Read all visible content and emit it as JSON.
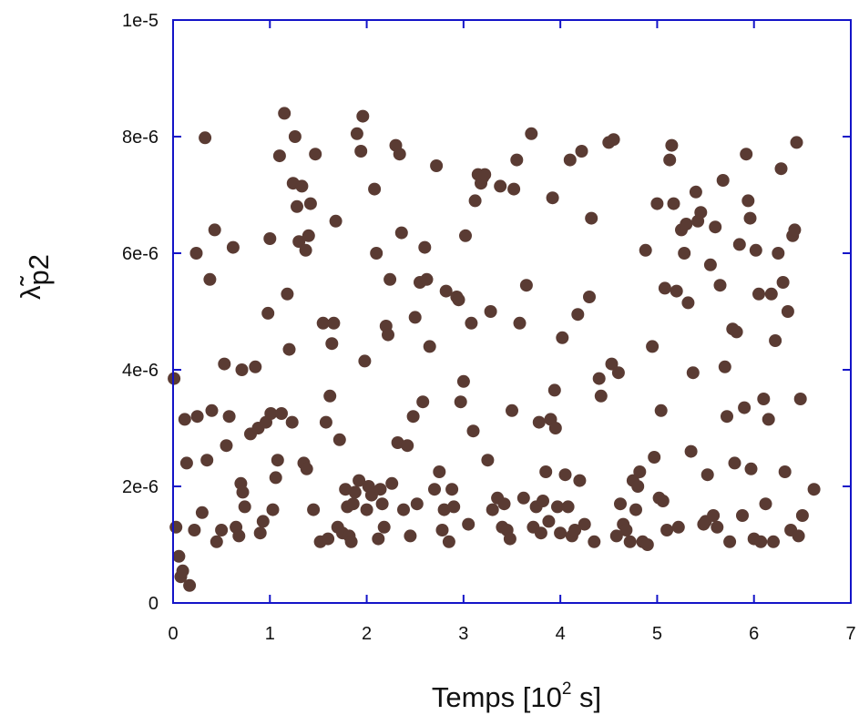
{
  "chart_data": {
    "type": "scatter",
    "xlabel": {
      "main": "Temps [10",
      "sup": "2",
      "unit": " s]"
    },
    "ylabel": {
      "symbol": "λ̃",
      "sub": "p2"
    },
    "xlim": [
      0,
      7
    ],
    "ylim": [
      0,
      1e-05
    ],
    "x_ticks": [
      0,
      1,
      2,
      3,
      4,
      5,
      6,
      7
    ],
    "x_tick_labels": [
      "0",
      "1",
      "2",
      "3",
      "4",
      "5",
      "6",
      "7"
    ],
    "y_ticks": [
      0,
      2e-06,
      4e-06,
      6e-06,
      8e-06,
      1e-05
    ],
    "y_tick_labels": [
      "0",
      "2e-6",
      "4e-6",
      "6e-6",
      "8e-6",
      "1e-5"
    ],
    "marker_color": "#5a3b33",
    "axis_color": "#1414c8",
    "series": [
      {
        "points": [
          [
            0.01,
            3.85e-06
          ],
          [
            0.03,
            1.3e-06
          ],
          [
            0.06,
            8e-07
          ],
          [
            0.08,
            4.5e-07
          ],
          [
            0.1,
            5.5e-07
          ],
          [
            0.17,
            3e-07
          ],
          [
            0.12,
            3.15e-06
          ],
          [
            0.14,
            2.4e-06
          ],
          [
            0.24,
            6e-06
          ],
          [
            0.25,
            3.2e-06
          ],
          [
            0.3,
            1.55e-06
          ],
          [
            0.22,
            1.25e-06
          ],
          [
            0.33,
            7.98e-06
          ],
          [
            0.38,
            5.55e-06
          ],
          [
            0.43,
            6.4e-06
          ],
          [
            0.4,
            3.3e-06
          ],
          [
            0.35,
            2.45e-06
          ],
          [
            0.45,
            1.05e-06
          ],
          [
            0.5,
            1.25e-06
          ],
          [
            0.53,
            4.1e-06
          ],
          [
            0.55,
            2.7e-06
          ],
          [
            0.58,
            3.2e-06
          ],
          [
            0.62,
            6.1e-06
          ],
          [
            0.65,
            1.3e-06
          ],
          [
            0.68,
            1.15e-06
          ],
          [
            0.7,
            2.05e-06
          ],
          [
            0.71,
            4e-06
          ],
          [
            0.72,
            1.9e-06
          ],
          [
            0.74,
            1.65e-06
          ],
          [
            0.8,
            2.9e-06
          ],
          [
            0.85,
            4.05e-06
          ],
          [
            0.88,
            3e-06
          ],
          [
            0.9,
            1.2e-06
          ],
          [
            0.93,
            1.4e-06
          ],
          [
            0.96,
            3.1e-06
          ],
          [
            0.98,
            4.97e-06
          ],
          [
            1,
            6.25e-06
          ],
          [
            1.01,
            3.25e-06
          ],
          [
            1.03,
            1.6e-06
          ],
          [
            1.06,
            2.15e-06
          ],
          [
            1.08,
            2.45e-06
          ],
          [
            1.1,
            7.67e-06
          ],
          [
            1.12,
            3.25e-06
          ],
          [
            1.15,
            8.4e-06
          ],
          [
            1.18,
            5.3e-06
          ],
          [
            1.2,
            4.35e-06
          ],
          [
            1.23,
            3.1e-06
          ],
          [
            1.24,
            7.2e-06
          ],
          [
            1.26,
            8e-06
          ],
          [
            1.28,
            6.8e-06
          ],
          [
            1.3,
            6.2e-06
          ],
          [
            1.33,
            7.15e-06
          ],
          [
            1.35,
            2.4e-06
          ],
          [
            1.37,
            6.05e-06
          ],
          [
            1.38,
            2.3e-06
          ],
          [
            1.4,
            6.3e-06
          ],
          [
            1.42,
            6.85e-06
          ],
          [
            1.45,
            1.6e-06
          ],
          [
            1.47,
            7.7e-06
          ],
          [
            1.52,
            1.05e-06
          ],
          [
            1.55,
            4.8e-06
          ],
          [
            1.58,
            3.1e-06
          ],
          [
            1.6,
            1.1e-06
          ],
          [
            1.62,
            3.55e-06
          ],
          [
            1.64,
            4.45e-06
          ],
          [
            1.66,
            4.8e-06
          ],
          [
            1.68,
            6.55e-06
          ],
          [
            1.7,
            1.3e-06
          ],
          [
            1.72,
            2.8e-06
          ],
          [
            1.75,
            1.2e-06
          ],
          [
            1.78,
            1.95e-06
          ],
          [
            1.8,
            1.65e-06
          ],
          [
            1.82,
            1.15e-06
          ],
          [
            1.84,
            1.05e-06
          ],
          [
            1.86,
            1.7e-06
          ],
          [
            1.88,
            1.9e-06
          ],
          [
            1.9,
            8.05e-06
          ],
          [
            1.92,
            2.1e-06
          ],
          [
            1.94,
            7.75e-06
          ],
          [
            1.96,
            8.35e-06
          ],
          [
            1.98,
            4.15e-06
          ],
          [
            2,
            1.6e-06
          ],
          [
            2.02,
            2e-06
          ],
          [
            2.05,
            1.85e-06
          ],
          [
            2.08,
            7.1e-06
          ],
          [
            2.1,
            6e-06
          ],
          [
            2.12,
            1.1e-06
          ],
          [
            2.14,
            1.95e-06
          ],
          [
            2.16,
            1.7e-06
          ],
          [
            2.18,
            1.3e-06
          ],
          [
            2.2,
            4.75e-06
          ],
          [
            2.22,
            4.6e-06
          ],
          [
            2.24,
            5.55e-06
          ],
          [
            2.26,
            2.05e-06
          ],
          [
            2.3,
            7.85e-06
          ],
          [
            2.32,
            2.75e-06
          ],
          [
            2.34,
            7.7e-06
          ],
          [
            2.36,
            6.35e-06
          ],
          [
            2.38,
            1.6e-06
          ],
          [
            2.42,
            2.7e-06
          ],
          [
            2.45,
            1.15e-06
          ],
          [
            2.48,
            3.2e-06
          ],
          [
            2.5,
            4.9e-06
          ],
          [
            2.52,
            1.7e-06
          ],
          [
            2.55,
            5.5e-06
          ],
          [
            2.58,
            3.45e-06
          ],
          [
            2.6,
            6.1e-06
          ],
          [
            2.62,
            5.55e-06
          ],
          [
            2.65,
            4.4e-06
          ],
          [
            2.7,
            1.95e-06
          ],
          [
            2.72,
            7.5e-06
          ],
          [
            2.75,
            2.25e-06
          ],
          [
            2.78,
            1.25e-06
          ],
          [
            2.8,
            1.6e-06
          ],
          [
            2.82,
            5.35e-06
          ],
          [
            2.85,
            1.05e-06
          ],
          [
            2.88,
            1.95e-06
          ],
          [
            2.9,
            1.65e-06
          ],
          [
            2.93,
            5.25e-06
          ],
          [
            2.95,
            5.2e-06
          ],
          [
            2.97,
            3.45e-06
          ],
          [
            3,
            3.8e-06
          ],
          [
            3.02,
            6.3e-06
          ],
          [
            3.05,
            1.35e-06
          ],
          [
            3.08,
            4.8e-06
          ],
          [
            3.1,
            2.95e-06
          ],
          [
            3.12,
            6.9e-06
          ],
          [
            3.15,
            7.35e-06
          ],
          [
            3.18,
            7.2e-06
          ],
          [
            3.2,
            7.3e-06
          ],
          [
            3.22,
            7.35e-06
          ],
          [
            3.25,
            2.45e-06
          ],
          [
            3.28,
            5e-06
          ],
          [
            3.3,
            1.6e-06
          ],
          [
            3.35,
            1.8e-06
          ],
          [
            3.38,
            7.15e-06
          ],
          [
            3.4,
            1.3e-06
          ],
          [
            3.42,
            1.7e-06
          ],
          [
            3.45,
            1.25e-06
          ],
          [
            3.48,
            1.1e-06
          ],
          [
            3.5,
            3.3e-06
          ],
          [
            3.52,
            7.1e-06
          ],
          [
            3.55,
            7.6e-06
          ],
          [
            3.58,
            4.8e-06
          ],
          [
            3.62,
            1.8e-06
          ],
          [
            3.65,
            5.45e-06
          ],
          [
            3.7,
            8.05e-06
          ],
          [
            3.72,
            1.3e-06
          ],
          [
            3.75,
            1.65e-06
          ],
          [
            3.78,
            3.1e-06
          ],
          [
            3.8,
            1.2e-06
          ],
          [
            3.82,
            1.75e-06
          ],
          [
            3.85,
            2.25e-06
          ],
          [
            3.88,
            1.4e-06
          ],
          [
            3.9,
            3.15e-06
          ],
          [
            3.92,
            6.95e-06
          ],
          [
            3.94,
            3.65e-06
          ],
          [
            3.95,
            3e-06
          ],
          [
            3.97,
            1.65e-06
          ],
          [
            4,
            1.2e-06
          ],
          [
            4.02,
            4.55e-06
          ],
          [
            4.05,
            2.2e-06
          ],
          [
            4.08,
            1.65e-06
          ],
          [
            4.1,
            7.6e-06
          ],
          [
            4.12,
            1.15e-06
          ],
          [
            4.15,
            1.25e-06
          ],
          [
            4.18,
            4.95e-06
          ],
          [
            4.2,
            2.1e-06
          ],
          [
            4.22,
            7.75e-06
          ],
          [
            4.25,
            1.35e-06
          ],
          [
            4.3,
            5.25e-06
          ],
          [
            4.32,
            6.6e-06
          ],
          [
            4.35,
            1.05e-06
          ],
          [
            4.4,
            3.85e-06
          ],
          [
            4.42,
            3.55e-06
          ],
          [
            4.5,
            7.9e-06
          ],
          [
            4.53,
            4.1e-06
          ],
          [
            4.55,
            7.95e-06
          ],
          [
            4.58,
            1.15e-06
          ],
          [
            4.6,
            3.95e-06
          ],
          [
            4.62,
            1.7e-06
          ],
          [
            4.65,
            1.35e-06
          ],
          [
            4.68,
            1.25e-06
          ],
          [
            4.72,
            1.05e-06
          ],
          [
            4.75,
            2.1e-06
          ],
          [
            4.78,
            1.6e-06
          ],
          [
            4.8,
            2e-06
          ],
          [
            4.82,
            2.25e-06
          ],
          [
            4.85,
            1.05e-06
          ],
          [
            4.88,
            6.05e-06
          ],
          [
            4.9,
            1e-06
          ],
          [
            4.95,
            4.4e-06
          ],
          [
            4.97,
            2.5e-06
          ],
          [
            5,
            6.85e-06
          ],
          [
            5.02,
            1.8e-06
          ],
          [
            5.04,
            3.3e-06
          ],
          [
            5.06,
            1.75e-06
          ],
          [
            5.08,
            5.4e-06
          ],
          [
            5.1,
            1.25e-06
          ],
          [
            5.13,
            7.6e-06
          ],
          [
            5.15,
            7.85e-06
          ],
          [
            5.17,
            6.85e-06
          ],
          [
            5.2,
            5.35e-06
          ],
          [
            5.22,
            1.3e-06
          ],
          [
            5.25,
            6.4e-06
          ],
          [
            5.28,
            6e-06
          ],
          [
            5.3,
            6.5e-06
          ],
          [
            5.32,
            5.15e-06
          ],
          [
            5.35,
            2.6e-06
          ],
          [
            5.37,
            3.95e-06
          ],
          [
            5.4,
            7.05e-06
          ],
          [
            5.42,
            6.55e-06
          ],
          [
            5.45,
            6.7e-06
          ],
          [
            5.48,
            1.35e-06
          ],
          [
            5.5,
            1.4e-06
          ],
          [
            5.52,
            2.2e-06
          ],
          [
            5.55,
            5.8e-06
          ],
          [
            5.58,
            1.5e-06
          ],
          [
            5.6,
            6.45e-06
          ],
          [
            5.62,
            1.3e-06
          ],
          [
            5.65,
            5.45e-06
          ],
          [
            5.68,
            7.25e-06
          ],
          [
            5.7,
            4.05e-06
          ],
          [
            5.72,
            3.2e-06
          ],
          [
            5.75,
            1.05e-06
          ],
          [
            5.78,
            4.7e-06
          ],
          [
            5.8,
            2.4e-06
          ],
          [
            5.82,
            4.65e-06
          ],
          [
            5.85,
            6.15e-06
          ],
          [
            5.88,
            1.5e-06
          ],
          [
            5.9,
            3.35e-06
          ],
          [
            5.92,
            7.7e-06
          ],
          [
            5.94,
            6.9e-06
          ],
          [
            5.96,
            6.6e-06
          ],
          [
            5.97,
            2.3e-06
          ],
          [
            6,
            1.1e-06
          ],
          [
            6.02,
            6.05e-06
          ],
          [
            6.05,
            5.3e-06
          ],
          [
            6.07,
            1.05e-06
          ],
          [
            6.1,
            3.5e-06
          ],
          [
            6.12,
            1.7e-06
          ],
          [
            6.15,
            3.15e-06
          ],
          [
            6.18,
            5.3e-06
          ],
          [
            6.2,
            1.05e-06
          ],
          [
            6.22,
            4.5e-06
          ],
          [
            6.25,
            6e-06
          ],
          [
            6.28,
            7.45e-06
          ],
          [
            6.3,
            5.5e-06
          ],
          [
            6.32,
            2.25e-06
          ],
          [
            6.35,
            5e-06
          ],
          [
            6.38,
            1.25e-06
          ],
          [
            6.4,
            6.3e-06
          ],
          [
            6.42,
            6.4e-06
          ],
          [
            6.44,
            7.9e-06
          ],
          [
            6.46,
            1.15e-06
          ],
          [
            6.48,
            3.5e-06
          ],
          [
            6.5,
            1.5e-06
          ],
          [
            6.62,
            1.95e-06
          ]
        ]
      }
    ]
  }
}
